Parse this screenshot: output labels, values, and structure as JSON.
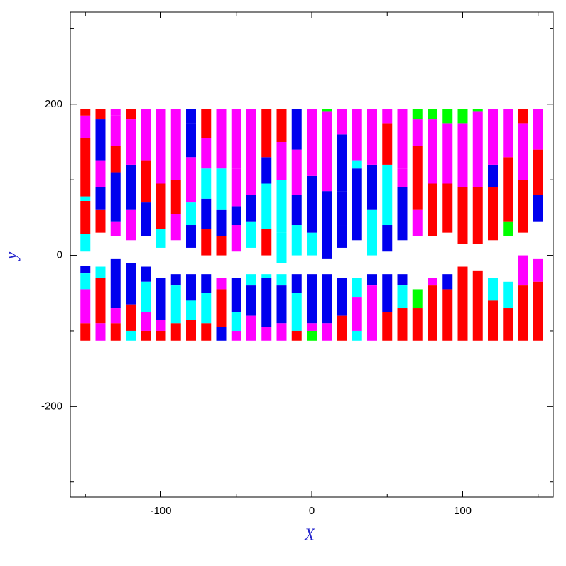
{
  "chart_data": {
    "type": "segments",
    "x_label": "X",
    "y_label": "y",
    "xlim": [
      -160,
      160
    ],
    "ylim": [
      -320,
      322
    ],
    "xticks": [
      -100,
      0,
      100
    ],
    "xminorticks": [
      -150,
      -50,
      50,
      150
    ],
    "yticks": [
      -200,
      0,
      200
    ],
    "yminorticks": [
      -300,
      -100,
      100,
      300
    ],
    "colors": [
      "#ff0000",
      "#ff00ff",
      "#0000ee",
      "#00ffff",
      "#00ff00"
    ],
    "columns": [
      {
        "x": -150,
        "segments": [
          [
            5,
            28,
            3
          ],
          [
            28,
            72,
            0
          ],
          [
            72,
            78,
            3
          ],
          [
            78,
            155,
            0
          ],
          [
            155,
            185,
            1
          ],
          [
            185,
            194,
            0
          ],
          [
            -24,
            -14,
            2
          ],
          [
            -45,
            -24,
            3
          ],
          [
            -90,
            -45,
            1
          ],
          [
            -113,
            -90,
            0
          ]
        ]
      },
      {
        "x": -140,
        "segments": [
          [
            30,
            60,
            0
          ],
          [
            60,
            90,
            2
          ],
          [
            90,
            125,
            1
          ],
          [
            125,
            180,
            2
          ],
          [
            180,
            194,
            0
          ],
          [
            -30,
            -15,
            3
          ],
          [
            -90,
            -30,
            0
          ],
          [
            -113,
            -90,
            1
          ]
        ]
      },
      {
        "x": -130,
        "segments": [
          [
            25,
            45,
            1
          ],
          [
            45,
            110,
            2
          ],
          [
            110,
            145,
            0
          ],
          [
            145,
            185,
            1
          ],
          [
            185,
            194,
            1
          ],
          [
            -70,
            -5,
            2
          ],
          [
            -90,
            -70,
            1
          ],
          [
            -113,
            -90,
            0
          ]
        ]
      },
      {
        "x": -120,
        "segments": [
          [
            20,
            60,
            1
          ],
          [
            60,
            120,
            2
          ],
          [
            120,
            180,
            1
          ],
          [
            180,
            194,
            0
          ],
          [
            -65,
            -10,
            2
          ],
          [
            -100,
            -65,
            0
          ],
          [
            -113,
            -100,
            3
          ]
        ]
      },
      {
        "x": -110,
        "segments": [
          [
            25,
            70,
            2
          ],
          [
            70,
            125,
            0
          ],
          [
            125,
            194,
            1
          ],
          [
            -35,
            -15,
            2
          ],
          [
            -75,
            -35,
            3
          ],
          [
            -100,
            -75,
            1
          ],
          [
            -113,
            -100,
            0
          ]
        ]
      },
      {
        "x": -100,
        "segments": [
          [
            10,
            35,
            3
          ],
          [
            35,
            95,
            0
          ],
          [
            95,
            194,
            1
          ],
          [
            -85,
            -30,
            2
          ],
          [
            -100,
            -85,
            1
          ],
          [
            -113,
            -100,
            0
          ]
        ]
      },
      {
        "x": -90,
        "segments": [
          [
            20,
            55,
            1
          ],
          [
            55,
            100,
            0
          ],
          [
            100,
            194,
            1
          ],
          [
            -40,
            -25,
            2
          ],
          [
            -90,
            -40,
            3
          ],
          [
            -113,
            -90,
            0
          ]
        ]
      },
      {
        "x": -80,
        "segments": [
          [
            10,
            40,
            2
          ],
          [
            40,
            70,
            3
          ],
          [
            70,
            130,
            1
          ],
          [
            130,
            175,
            2
          ],
          [
            175,
            194,
            2
          ],
          [
            -60,
            -25,
            2
          ],
          [
            -85,
            -60,
            3
          ],
          [
            -113,
            -85,
            0
          ]
        ]
      },
      {
        "x": -70,
        "segments": [
          [
            0,
            35,
            0
          ],
          [
            35,
            75,
            2
          ],
          [
            75,
            115,
            3
          ],
          [
            115,
            155,
            1
          ],
          [
            155,
            194,
            0
          ],
          [
            -50,
            -25,
            2
          ],
          [
            -90,
            -50,
            3
          ],
          [
            -113,
            -90,
            0
          ]
        ]
      },
      {
        "x": -60,
        "segments": [
          [
            0,
            25,
            0
          ],
          [
            25,
            60,
            2
          ],
          [
            60,
            115,
            3
          ],
          [
            115,
            194,
            1
          ],
          [
            -45,
            -30,
            1
          ],
          [
            -95,
            -45,
            0
          ],
          [
            -113,
            -95,
            2
          ]
        ]
      },
      {
        "x": -50,
        "segments": [
          [
            5,
            40,
            1
          ],
          [
            40,
            65,
            2
          ],
          [
            65,
            115,
            1
          ],
          [
            115,
            194,
            1
          ],
          [
            -75,
            -30,
            2
          ],
          [
            -100,
            -75,
            3
          ],
          [
            -113,
            -100,
            1
          ]
        ]
      },
      {
        "x": -40,
        "segments": [
          [
            10,
            45,
            3
          ],
          [
            45,
            80,
            2
          ],
          [
            80,
            194,
            1
          ],
          [
            -40,
            -25,
            3
          ],
          [
            -80,
            -40,
            2
          ],
          [
            -113,
            -80,
            1
          ]
        ]
      },
      {
        "x": -30,
        "segments": [
          [
            0,
            35,
            0
          ],
          [
            35,
            95,
            3
          ],
          [
            95,
            130,
            2
          ],
          [
            130,
            194,
            0
          ],
          [
            -30,
            -25,
            3
          ],
          [
            -95,
            -30,
            2
          ],
          [
            -113,
            -95,
            1
          ]
        ]
      },
      {
        "x": -20,
        "segments": [
          [
            -10,
            30,
            3
          ],
          [
            30,
            100,
            3
          ],
          [
            100,
            150,
            1
          ],
          [
            150,
            194,
            0
          ],
          [
            -40,
            -25,
            3
          ],
          [
            -90,
            -40,
            2
          ],
          [
            -113,
            -90,
            1
          ]
        ]
      },
      {
        "x": -10,
        "segments": [
          [
            0,
            40,
            3
          ],
          [
            40,
            80,
            2
          ],
          [
            80,
            140,
            1
          ],
          [
            140,
            194,
            2
          ],
          [
            -50,
            -25,
            2
          ],
          [
            -100,
            -50,
            3
          ],
          [
            -113,
            -100,
            0
          ]
        ]
      },
      {
        "x": 0,
        "segments": [
          [
            0,
            30,
            3
          ],
          [
            30,
            105,
            2
          ],
          [
            105,
            194,
            1
          ],
          [
            -90,
            -25,
            2
          ],
          [
            -100,
            -90,
            1
          ],
          [
            -113,
            -100,
            4
          ]
        ]
      },
      {
        "x": 10,
        "segments": [
          [
            -5,
            85,
            2
          ],
          [
            85,
            190,
            1
          ],
          [
            190,
            194,
            4
          ],
          [
            -90,
            -25,
            2
          ],
          [
            -113,
            -90,
            1
          ]
        ]
      },
      {
        "x": 20,
        "segments": [
          [
            10,
            40,
            2
          ],
          [
            40,
            85,
            2
          ],
          [
            85,
            160,
            2
          ],
          [
            160,
            194,
            1
          ],
          [
            -80,
            -30,
            2
          ],
          [
            -113,
            -80,
            0
          ]
        ]
      },
      {
        "x": 30,
        "segments": [
          [
            20,
            115,
            2
          ],
          [
            115,
            125,
            3
          ],
          [
            125,
            194,
            1
          ],
          [
            -55,
            -30,
            3
          ],
          [
            -100,
            -55,
            1
          ],
          [
            -113,
            -100,
            3
          ]
        ]
      },
      {
        "x": 40,
        "segments": [
          [
            0,
            60,
            3
          ],
          [
            60,
            120,
            2
          ],
          [
            120,
            194,
            1
          ],
          [
            -40,
            -25,
            2
          ],
          [
            -113,
            -40,
            1
          ]
        ]
      },
      {
        "x": 50,
        "segments": [
          [
            5,
            40,
            2
          ],
          [
            40,
            120,
            3
          ],
          [
            120,
            175,
            0
          ],
          [
            175,
            194,
            1
          ],
          [
            -75,
            -25,
            2
          ],
          [
            -113,
            -75,
            0
          ]
        ]
      },
      {
        "x": 60,
        "segments": [
          [
            20,
            90,
            2
          ],
          [
            90,
            115,
            1
          ],
          [
            115,
            194,
            1
          ],
          [
            -40,
            -25,
            2
          ],
          [
            -70,
            -40,
            3
          ],
          [
            -113,
            -70,
            0
          ]
        ]
      },
      {
        "x": 70,
        "segments": [
          [
            25,
            60,
            1
          ],
          [
            60,
            145,
            0
          ],
          [
            145,
            180,
            1
          ],
          [
            180,
            194,
            4
          ],
          [
            -70,
            -45,
            4
          ],
          [
            -113,
            -70,
            0
          ]
        ]
      },
      {
        "x": 80,
        "segments": [
          [
            25,
            95,
            0
          ],
          [
            95,
            180,
            1
          ],
          [
            180,
            194,
            4
          ],
          [
            -40,
            -30,
            1
          ],
          [
            -113,
            -40,
            0
          ]
        ]
      },
      {
        "x": 90,
        "segments": [
          [
            30,
            95,
            0
          ],
          [
            95,
            175,
            1
          ],
          [
            175,
            194,
            4
          ],
          [
            -45,
            -25,
            2
          ],
          [
            -113,
            -45,
            0
          ]
        ]
      },
      {
        "x": 100,
        "segments": [
          [
            15,
            90,
            0
          ],
          [
            90,
            175,
            1
          ],
          [
            175,
            194,
            4
          ],
          [
            -113,
            -15,
            0
          ]
        ]
      },
      {
        "x": 110,
        "segments": [
          [
            15,
            90,
            0
          ],
          [
            90,
            190,
            1
          ],
          [
            190,
            194,
            4
          ],
          [
            -113,
            -20,
            0
          ]
        ]
      },
      {
        "x": 120,
        "segments": [
          [
            20,
            90,
            0
          ],
          [
            90,
            120,
            2
          ],
          [
            120,
            194,
            1
          ],
          [
            -60,
            -30,
            3
          ],
          [
            -113,
            -60,
            0
          ]
        ]
      },
      {
        "x": 130,
        "segments": [
          [
            25,
            45,
            4
          ],
          [
            45,
            130,
            0
          ],
          [
            130,
            194,
            1
          ],
          [
            -70,
            -35,
            3
          ],
          [
            -113,
            -70,
            0
          ]
        ]
      },
      {
        "x": 140,
        "segments": [
          [
            30,
            100,
            0
          ],
          [
            100,
            175,
            1
          ],
          [
            175,
            194,
            0
          ],
          [
            -40,
            0,
            1
          ],
          [
            -113,
            -40,
            0
          ]
        ]
      },
      {
        "x": 150,
        "segments": [
          [
            45,
            80,
            2
          ],
          [
            80,
            140,
            0
          ],
          [
            140,
            194,
            1
          ],
          [
            -35,
            -5,
            1
          ],
          [
            -113,
            -35,
            0
          ]
        ]
      }
    ]
  }
}
